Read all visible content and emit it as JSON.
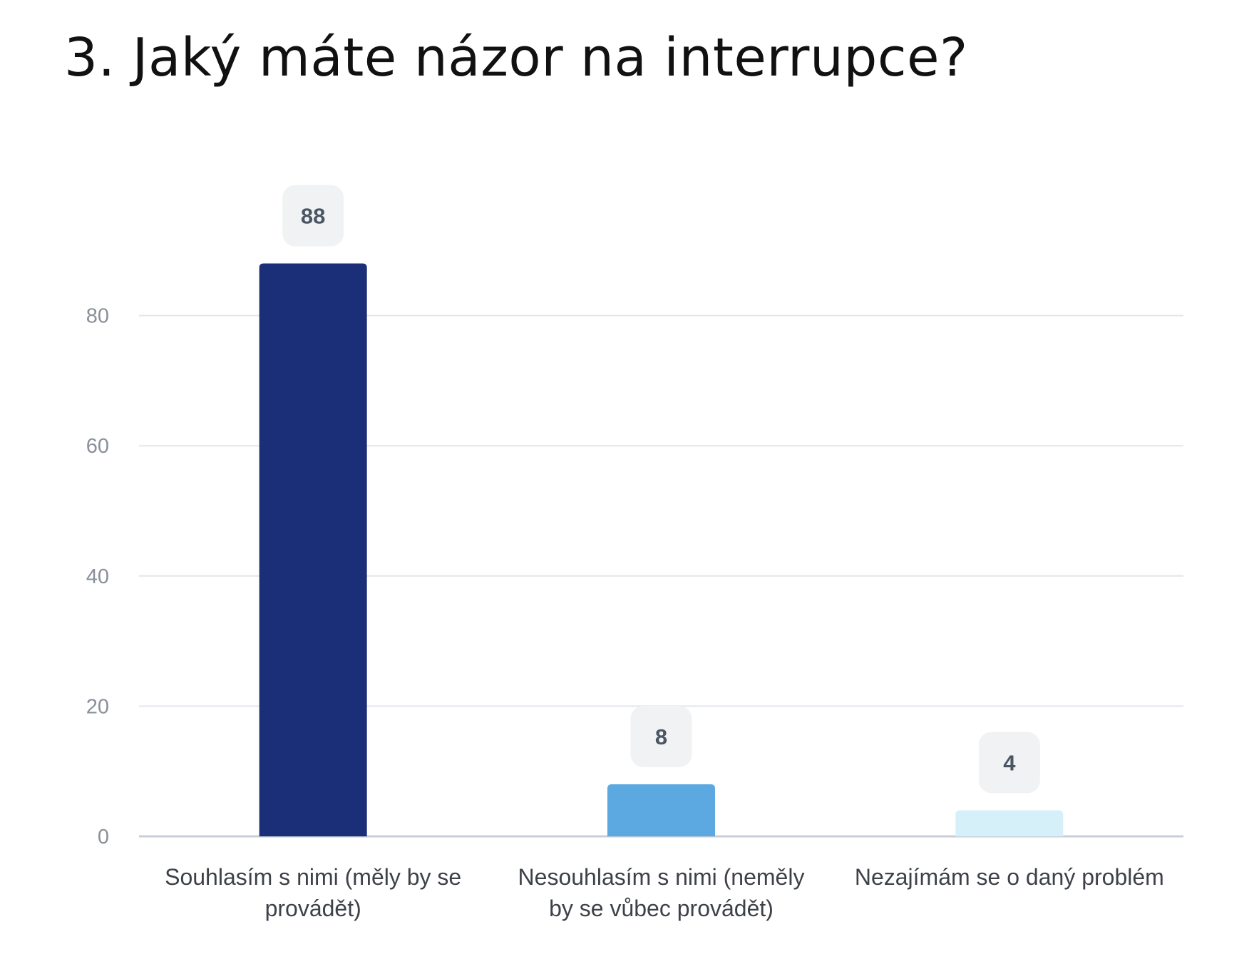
{
  "chart_data": {
    "type": "bar",
    "title": "3. Jaký máte názor na interrupce?",
    "categories": [
      [
        "Souhlasím s nimi (měly by se",
        "provádět)"
      ],
      [
        "Nesouhlasím s nimi (neměly",
        "by se vůbec provádět)"
      ],
      [
        "Nezajímám se o daný problém"
      ]
    ],
    "values": [
      88,
      8,
      4
    ],
    "value_labels": [
      "88",
      "8",
      "4"
    ],
    "colors": [
      "#1b2e78",
      "#5ca9e1",
      "#d6f0f9"
    ],
    "ylim": [
      0,
      100
    ],
    "yticks": [
      0,
      20,
      40,
      60,
      80
    ],
    "ytick_labels": [
      "0",
      "20",
      "40",
      "60",
      "80"
    ],
    "grid": true,
    "legend": "none",
    "xlabel": "",
    "ylabel": ""
  }
}
